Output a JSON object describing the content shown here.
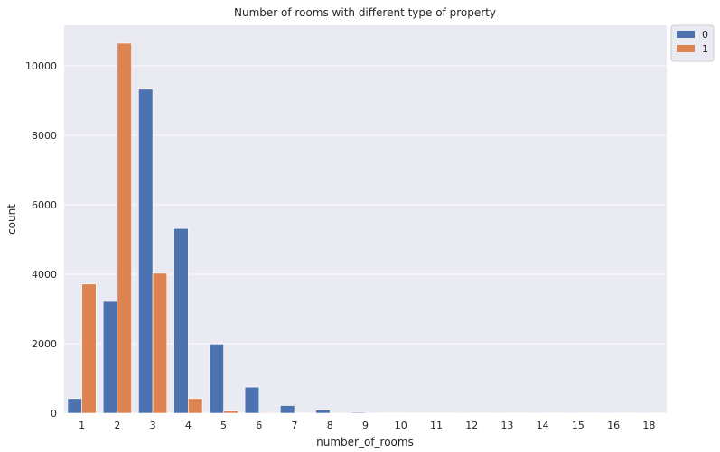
{
  "chart_data": {
    "type": "bar",
    "title": "Number of rooms with different type of property",
    "xlabel": "number_of_rooms",
    "ylabel": "count",
    "categories": [
      "1",
      "2",
      "3",
      "4",
      "5",
      "6",
      "7",
      "8",
      "9",
      "10",
      "11",
      "12",
      "13",
      "14",
      "15",
      "16",
      "18"
    ],
    "series": [
      {
        "name": "0",
        "color": "#4c72b0",
        "values": [
          420,
          3220,
          9330,
          5320,
          1990,
          750,
          220,
          90,
          25,
          12,
          5,
          3,
          2,
          1,
          1,
          1,
          1
        ]
      },
      {
        "name": "1",
        "color": "#dd8452",
        "values": [
          3720,
          10650,
          4030,
          420,
          60,
          20,
          8,
          3,
          2,
          1,
          1,
          1,
          0,
          0,
          0,
          0,
          0
        ]
      }
    ],
    "yticks": [
      0,
      2000,
      4000,
      6000,
      8000,
      10000
    ],
    "ylim": [
      0,
      11170
    ],
    "grid": true,
    "legend_position": "top-right, outside plot",
    "background_color": "#eaeaf2",
    "grid_color": "#ffffff"
  }
}
